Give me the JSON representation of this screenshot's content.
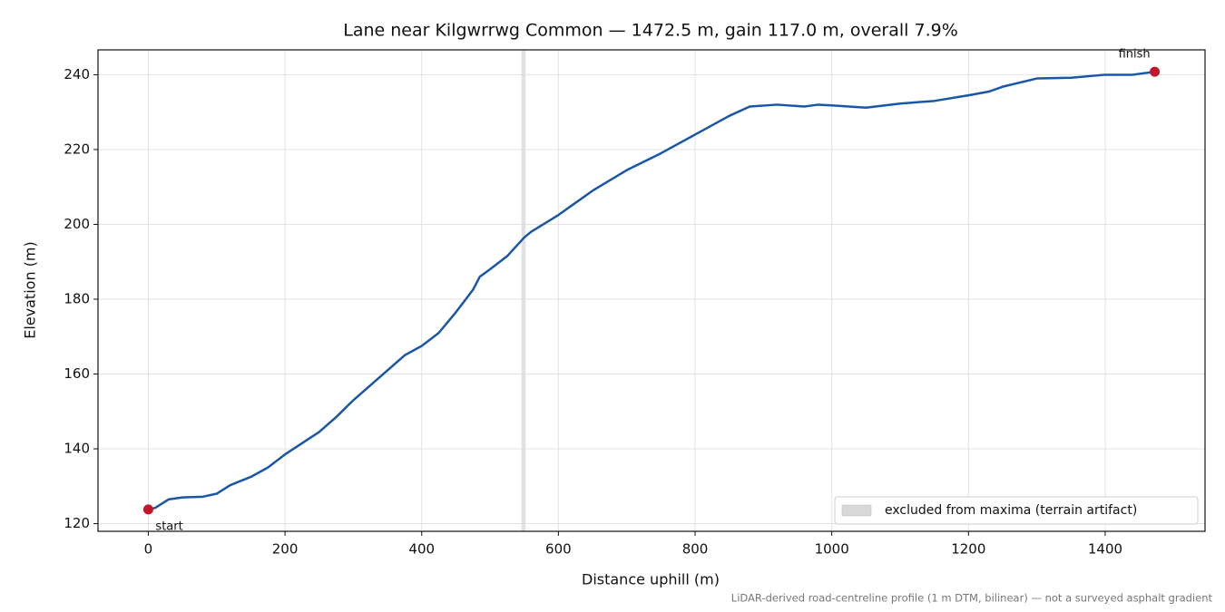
{
  "chart_data": {
    "type": "line",
    "title": "Lane near Kilgwrrwg Common — 1472.5 m, gain 117.0 m, overall 7.9%",
    "xlabel": "Distance uphill (m)",
    "ylabel": "Elevation (m)",
    "footnote": "LiDAR-derived road-centreline profile (1 m DTM, bilinear) — not a surveyed asphalt gradient",
    "x": [
      0,
      10,
      30,
      50,
      80,
      100,
      120,
      150,
      175,
      200,
      225,
      250,
      275,
      300,
      325,
      350,
      375,
      400,
      425,
      450,
      475,
      485,
      500,
      525,
      550,
      560,
      600,
      650,
      700,
      750,
      800,
      850,
      880,
      920,
      960,
      980,
      1000,
      1050,
      1100,
      1150,
      1200,
      1230,
      1250,
      1300,
      1350,
      1400,
      1440,
      1472.5
    ],
    "series": [
      {
        "color": "#1a56a8",
        "values": [
          123.8,
          124.2,
          126.5,
          127,
          127.2,
          128,
          130.3,
          132.5,
          135,
          138.5,
          141.5,
          144.5,
          148.5,
          153,
          157,
          161,
          165,
          167.5,
          171,
          176.5,
          182.5,
          186,
          188,
          191.5,
          196.5,
          198,
          202.5,
          209,
          214.5,
          219,
          224,
          229,
          231.5,
          232,
          231.5,
          232,
          231.8,
          231.2,
          232.3,
          233,
          234.5,
          235.5,
          236.8,
          239,
          239.2,
          240,
          240,
          240.8
        ]
      }
    ],
    "annotations": [
      {
        "text": "start",
        "x": 0,
        "y": 123.8,
        "color": "#c0172a"
      },
      {
        "text": "finish",
        "x": 1472.5,
        "y": 240.8,
        "color": "#c0172a"
      }
    ],
    "spans": [
      {
        "label": "excluded from maxima (terrain artifact)",
        "range": [
          546,
          552
        ],
        "color": "#d9d9d9"
      }
    ],
    "legend": "lower right",
    "xlim": [
      -73.6,
      1546.1
    ],
    "ylim": [
      117.95,
      246.65
    ],
    "xticks": [
      0,
      200,
      400,
      600,
      800,
      1000,
      1200,
      1400
    ],
    "yticks": [
      120,
      140,
      160,
      180,
      200,
      220,
      240
    ],
    "grid": true
  }
}
